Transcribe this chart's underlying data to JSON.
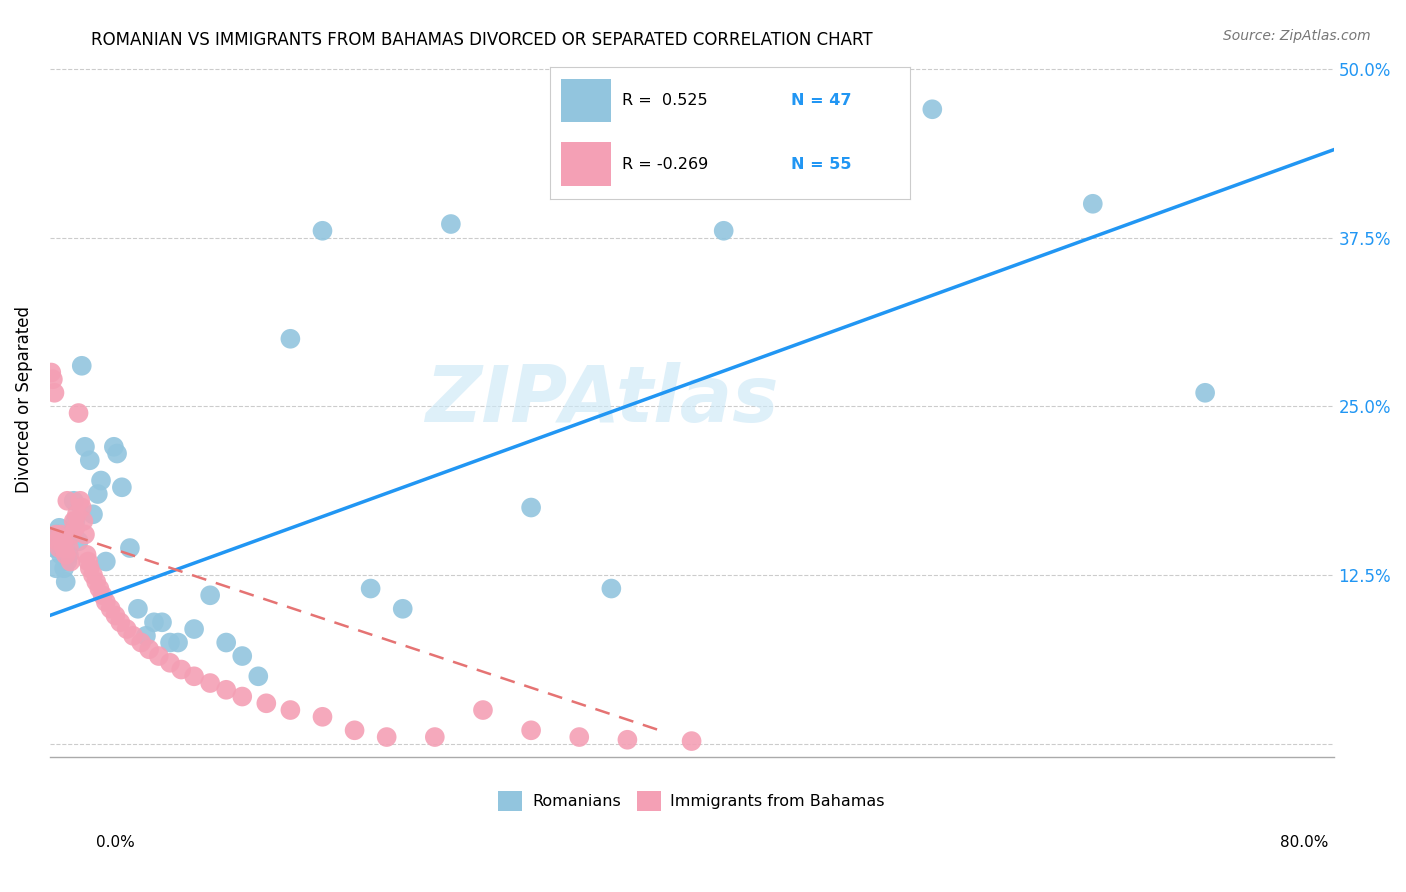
{
  "title": "ROMANIAN VS IMMIGRANTS FROM BAHAMAS DIVORCED OR SEPARATED CORRELATION CHART",
  "source": "Source: ZipAtlas.com",
  "ylabel": "Divorced or Separated",
  "watermark": "ZIPAtlas",
  "legend_r1": "R =  0.525",
  "legend_n1": "N = 47",
  "legend_r2": "R = -0.269",
  "legend_n2": "N = 55",
  "blue_color": "#92c5de",
  "pink_color": "#f4a0b5",
  "blue_line_color": "#2196F3",
  "pink_line_color": "#e57373",
  "background_color": "#ffffff",
  "grid_color": "#cccccc",
  "xlim": [
    0.0,
    0.8
  ],
  "ylim": [
    -0.01,
    0.52
  ],
  "yticks": [
    0.0,
    0.125,
    0.25,
    0.375,
    0.5
  ],
  "ytick_labels": [
    "",
    "12.5%",
    "25.0%",
    "37.5%",
    "50.0%"
  ],
  "blue_scatter_x": [
    0.003,
    0.005,
    0.006,
    0.007,
    0.008,
    0.009,
    0.01,
    0.011,
    0.012,
    0.013,
    0.015,
    0.016,
    0.018,
    0.02,
    0.022,
    0.025,
    0.027,
    0.03,
    0.032,
    0.035,
    0.04,
    0.042,
    0.045,
    0.05,
    0.055,
    0.06,
    0.065,
    0.07,
    0.075,
    0.08,
    0.09,
    0.1,
    0.11,
    0.12,
    0.13,
    0.15,
    0.17,
    0.2,
    0.22,
    0.25,
    0.3,
    0.35,
    0.42,
    0.55,
    0.65,
    0.72,
    0.004
  ],
  "blue_scatter_y": [
    0.145,
    0.155,
    0.16,
    0.14,
    0.145,
    0.13,
    0.12,
    0.135,
    0.14,
    0.155,
    0.18,
    0.165,
    0.15,
    0.28,
    0.22,
    0.21,
    0.17,
    0.185,
    0.195,
    0.135,
    0.22,
    0.215,
    0.19,
    0.145,
    0.1,
    0.08,
    0.09,
    0.09,
    0.075,
    0.075,
    0.085,
    0.11,
    0.075,
    0.065,
    0.05,
    0.3,
    0.38,
    0.115,
    0.1,
    0.385,
    0.175,
    0.115,
    0.38,
    0.47,
    0.4,
    0.26,
    0.13
  ],
  "pink_scatter_x": [
    0.001,
    0.002,
    0.003,
    0.004,
    0.005,
    0.006,
    0.007,
    0.008,
    0.009,
    0.01,
    0.011,
    0.012,
    0.013,
    0.014,
    0.015,
    0.016,
    0.017,
    0.018,
    0.019,
    0.02,
    0.021,
    0.022,
    0.023,
    0.024,
    0.025,
    0.027,
    0.029,
    0.031,
    0.033,
    0.035,
    0.038,
    0.041,
    0.044,
    0.048,
    0.052,
    0.057,
    0.062,
    0.068,
    0.075,
    0.082,
    0.09,
    0.1,
    0.11,
    0.12,
    0.135,
    0.15,
    0.17,
    0.19,
    0.21,
    0.24,
    0.27,
    0.3,
    0.33,
    0.36,
    0.4
  ],
  "pink_scatter_y": [
    0.275,
    0.27,
    0.26,
    0.155,
    0.15,
    0.145,
    0.155,
    0.15,
    0.145,
    0.14,
    0.18,
    0.145,
    0.135,
    0.155,
    0.165,
    0.16,
    0.17,
    0.245,
    0.18,
    0.175,
    0.165,
    0.155,
    0.14,
    0.135,
    0.13,
    0.125,
    0.12,
    0.115,
    0.11,
    0.105,
    0.1,
    0.095,
    0.09,
    0.085,
    0.08,
    0.075,
    0.07,
    0.065,
    0.06,
    0.055,
    0.05,
    0.045,
    0.04,
    0.035,
    0.03,
    0.025,
    0.02,
    0.01,
    0.005,
    0.005,
    0.025,
    0.01,
    0.005,
    0.003,
    0.002
  ],
  "blue_trend_x": [
    0.0,
    0.8
  ],
  "blue_trend_y": [
    0.095,
    0.44
  ],
  "pink_trend_x": [
    0.0,
    0.38
  ],
  "pink_trend_y": [
    0.16,
    0.01
  ]
}
